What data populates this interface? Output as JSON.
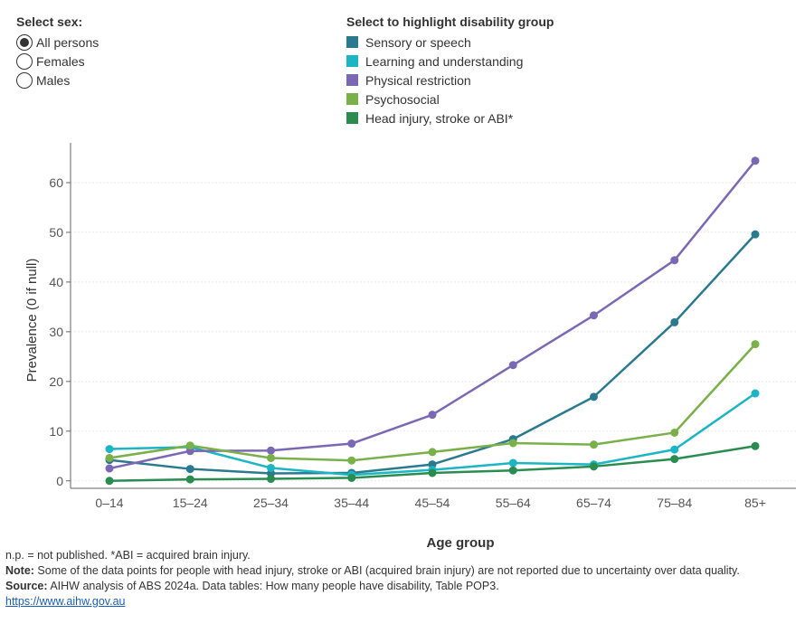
{
  "sex_selector": {
    "title": "Select sex:",
    "options": [
      {
        "label": "All persons",
        "checked": true
      },
      {
        "label": "Females",
        "checked": false
      },
      {
        "label": "Males",
        "checked": false
      }
    ]
  },
  "legend": {
    "title": "Select to highlight disability group"
  },
  "chart_data": {
    "type": "line",
    "xlabel": "Age group",
    "ylabel": "Prevalence (0 if null)",
    "categories": [
      "0–14",
      "15–24",
      "25–34",
      "35–44",
      "45–54",
      "55–64",
      "65–74",
      "75–84",
      "85+"
    ],
    "ylim": [
      -1.5,
      68
    ],
    "yticks": [
      0,
      10,
      20,
      30,
      40,
      50,
      60
    ],
    "grid": true,
    "legend_position": "top",
    "series": [
      {
        "name": "Sensory or speech",
        "color": "#2a7a8f",
        "values": [
          4.2,
          2.4,
          1.5,
          1.6,
          3.3,
          8.4,
          16.9,
          31.9,
          49.6
        ]
      },
      {
        "name": "Learning and understanding",
        "color": "#1bb5c4",
        "values": [
          6.4,
          6.8,
          2.6,
          1.2,
          2.2,
          3.6,
          3.3,
          6.3,
          17.6
        ]
      },
      {
        "name": "Physical restriction",
        "color": "#7b68b5",
        "values": [
          2.5,
          6.0,
          6.1,
          7.5,
          13.3,
          23.3,
          33.3,
          44.4,
          64.4
        ]
      },
      {
        "name": "Psychosocial",
        "color": "#79b04a",
        "values": [
          4.6,
          7.1,
          4.6,
          4.1,
          5.8,
          7.6,
          7.3,
          9.7,
          27.5
        ]
      },
      {
        "name": "Head injury, stroke or ABI*",
        "color": "#2a8c4f",
        "values": [
          0.0,
          0.3,
          0.4,
          0.6,
          1.6,
          2.1,
          2.9,
          4.4,
          7.0
        ]
      }
    ]
  },
  "footer": {
    "abbrev": "n.p. = not published. *ABI = acquired brain injury.",
    "note_label": "Note:",
    "note_text": " Some of the data points for people with head injury, stroke or ABI (acquired brain injury) are not reported due to uncertainty over data quality.",
    "source_label": "Source:",
    "source_text": " AIHW analysis of ABS 2024a. Data tables: How many people have disability, Table POP3.",
    "link": "https://www.aihw.gov.au"
  }
}
